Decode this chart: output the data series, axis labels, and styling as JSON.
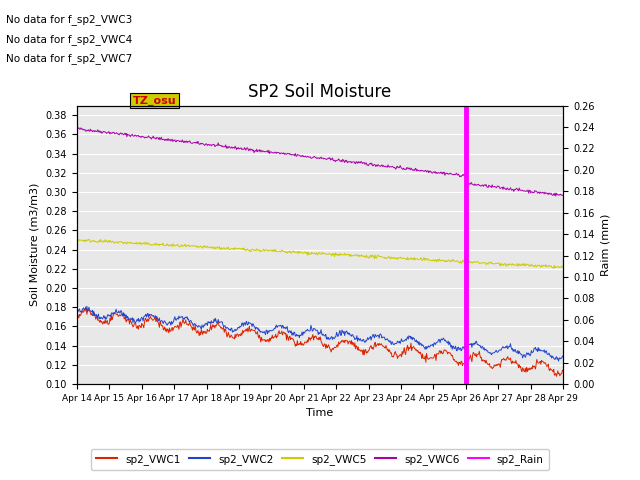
{
  "title": "SP2 Soil Moisture",
  "ylabel_left": "Soil Moisture (m3/m3)",
  "ylabel_right": "Raim (mm)",
  "xlabel": "Time",
  "ylim_left": [
    0.1,
    0.39
  ],
  "ylim_right": [
    0.0,
    0.26
  ],
  "yticks_left": [
    0.1,
    0.12,
    0.14,
    0.16,
    0.18,
    0.2,
    0.22,
    0.24,
    0.26,
    0.28,
    0.3,
    0.32,
    0.34,
    0.36,
    0.38
  ],
  "yticks_right": [
    0.0,
    0.02,
    0.04,
    0.06,
    0.08,
    0.1,
    0.12,
    0.14,
    0.16,
    0.18,
    0.2,
    0.22,
    0.24,
    0.26
  ],
  "xtick_labels": [
    "Apr 14",
    "Apr 15",
    "Apr 16",
    "Apr 17",
    "Apr 18",
    "Apr 19",
    "Apr 20",
    "Apr 21",
    "Apr 22",
    "Apr 23",
    "Apr 24",
    "Apr 25",
    "Apr 26",
    "Apr 27",
    "Apr 28",
    "Apr 29"
  ],
  "rain_day": 12,
  "no_data_texts": [
    "No data for f_sp2_VWC3",
    "No data for f_sp2_VWC4",
    "No data for f_sp2_VWC7"
  ],
  "tz_osu_label": "TZ_osu",
  "tz_osu_color": "#cc0000",
  "tz_osu_bg": "#cccc00",
  "colors": {
    "VWC1": "#dd2200",
    "VWC2": "#2244cc",
    "VWC5": "#cccc00",
    "VWC6": "#aa00aa",
    "Rain": "#ff00ff"
  },
  "legend_labels": [
    "sp2_VWC1",
    "sp2_VWC2",
    "sp2_VWC5",
    "sp2_VWC6",
    "sp2_Rain"
  ],
  "background_color": "#e8e8e8",
  "grid_color": "#ffffff"
}
